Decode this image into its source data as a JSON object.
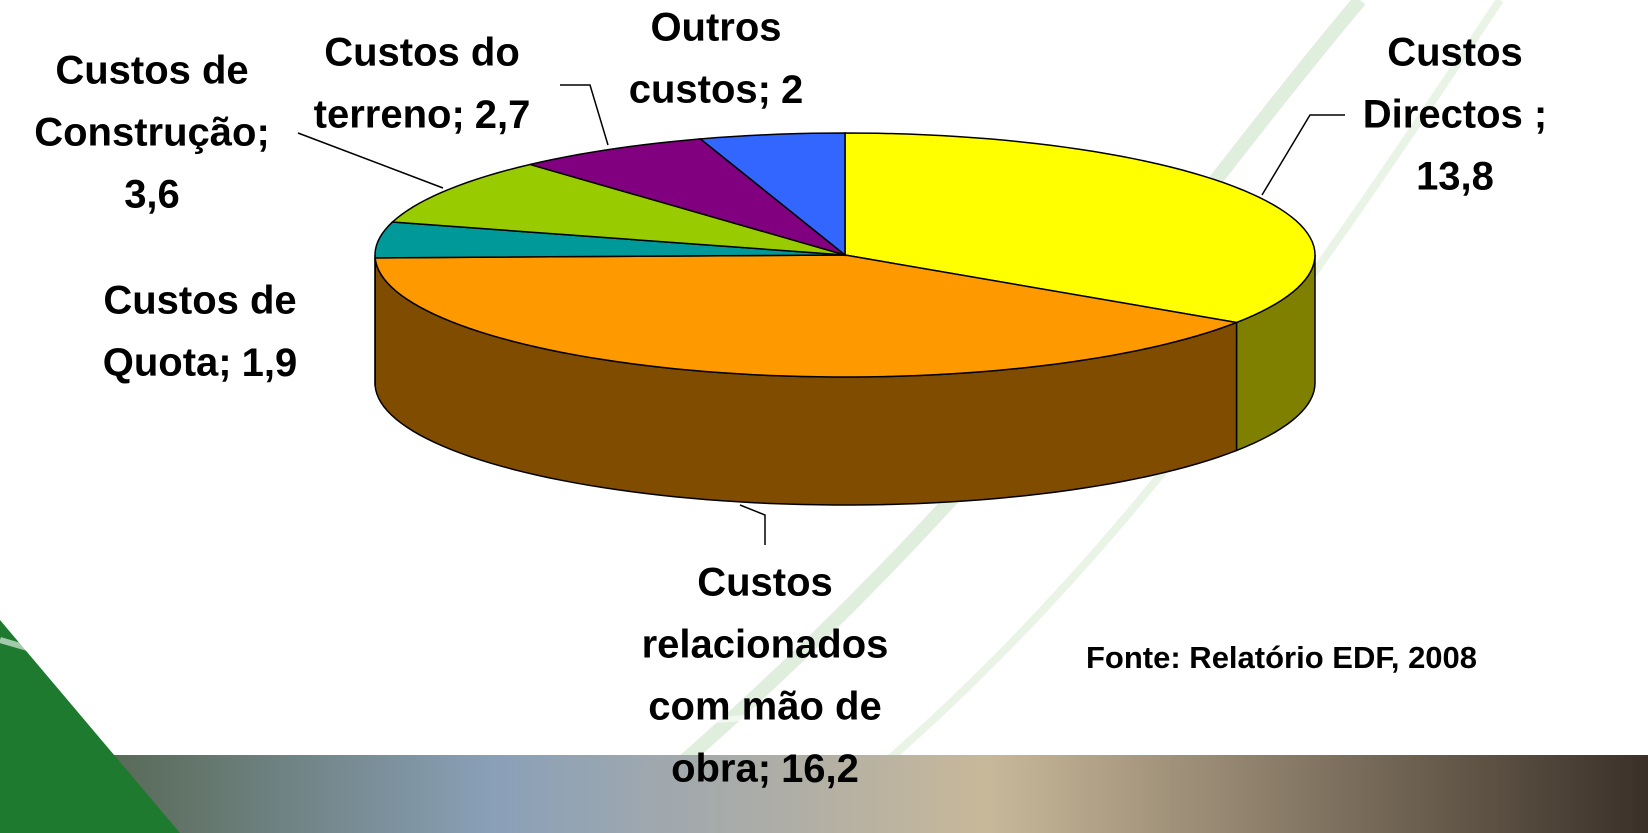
{
  "chart_data": {
    "type": "pie3d",
    "categories": [
      [
        "Custos",
        "Directos ;"
      ],
      [
        "Custos",
        "relacionados",
        "com mão de",
        "obra;"
      ],
      [
        "Custos de",
        "Quota;"
      ],
      [
        "Custos de",
        "Construção;"
      ],
      [
        "Custos do",
        "terreno;"
      ],
      [
        "Outros",
        "custos;"
      ]
    ],
    "values": [
      13.8,
      16.2,
      1.9,
      3.6,
      2.7,
      2
    ],
    "value_labels": [
      "13,8",
      "16,2",
      "1,9",
      "3,6",
      "2,7",
      "2"
    ],
    "colors": [
      "#ffff00",
      "#ff9900",
      "#009999",
      "#99cc00",
      "#800080",
      "#3366ff"
    ],
    "side_colors": [
      "#808000",
      "#804c00",
      "#006666",
      "#668800",
      "#500050",
      "#1f3f99"
    ],
    "source": "Fonte: Relatório EDF, 2008"
  }
}
